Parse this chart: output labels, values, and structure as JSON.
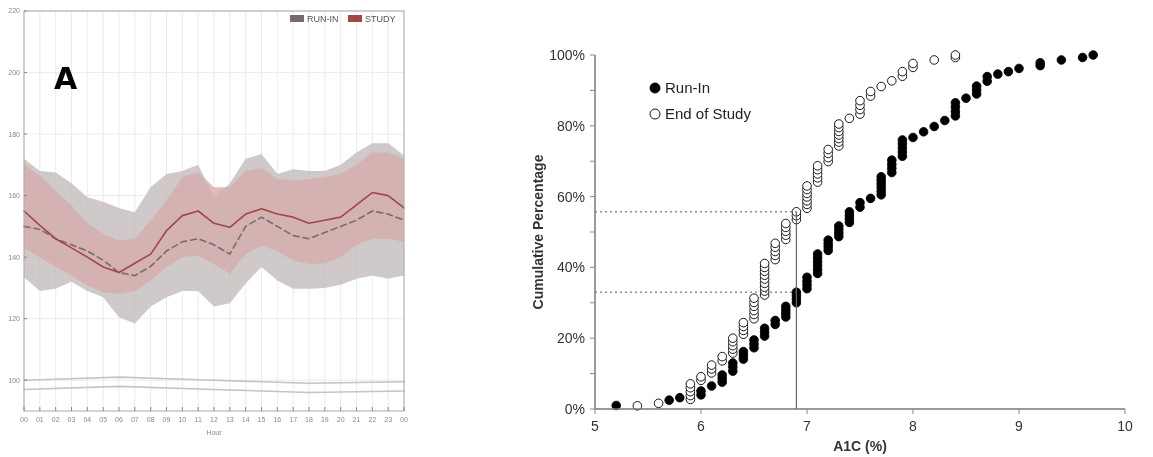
{
  "chart_data": [
    {
      "type": "line",
      "xlabel": "Hour",
      "annotations": [
        "A"
      ],
      "x": [
        0,
        1,
        2,
        3,
        4,
        5,
        6,
        7,
        8,
        9,
        10,
        11,
        12,
        13,
        14,
        15,
        16,
        17,
        18,
        19,
        20,
        21,
        22,
        23,
        24
      ],
      "xlim": [
        0,
        24
      ],
      "xticks": [
        {
          "value": 0,
          "label": "00"
        },
        {
          "value": 1,
          "label": "01"
        },
        {
          "value": 2,
          "label": "02"
        },
        {
          "value": 3,
          "label": "03"
        },
        {
          "value": 4,
          "label": "04"
        },
        {
          "value": 5,
          "label": "05"
        },
        {
          "value": 6,
          "label": "06"
        },
        {
          "value": 7,
          "label": "07"
        },
        {
          "value": 8,
          "label": "08"
        },
        {
          "value": 9,
          "label": "09"
        },
        {
          "value": 10,
          "label": "10"
        },
        {
          "value": 11,
          "label": "11"
        },
        {
          "value": 12,
          "label": "12"
        },
        {
          "value": 13,
          "label": "13"
        },
        {
          "value": 14,
          "label": "14"
        },
        {
          "value": 15,
          "label": "15"
        },
        {
          "value": 16,
          "label": "16"
        },
        {
          "value": 17,
          "label": "17"
        },
        {
          "value": 18,
          "label": "18"
        },
        {
          "value": 19,
          "label": "19"
        },
        {
          "value": 20,
          "label": "20"
        },
        {
          "value": 21,
          "label": "21"
        },
        {
          "value": 22,
          "label": "22"
        },
        {
          "value": 23,
          "label": "23"
        },
        {
          "value": 24,
          "label": "00"
        }
      ],
      "ylim": [
        90,
        220
      ],
      "yticks": [
        100,
        120,
        140,
        160,
        180,
        200,
        220
      ],
      "grid": true,
      "legend": "top right",
      "series": [
        {
          "name": "RUN-IN",
          "color": "#7a6a6a",
          "line_style": "dashed",
          "values": [
            150,
            149,
            146,
            144,
            142,
            139,
            135,
            134,
            137,
            142,
            145,
            146,
            144,
            141,
            150,
            153,
            150,
            147,
            146,
            148,
            150,
            152,
            155,
            154,
            152
          ],
          "lower": [
            133.5,
            129,
            129.7,
            132,
            129,
            127,
            120.5,
            118.4,
            124,
            127,
            129,
            129,
            124,
            125,
            131.4,
            136.8,
            132.4,
            129.7,
            129.7,
            130,
            131,
            133,
            134,
            133,
            134
          ],
          "upper": [
            172,
            168,
            167.5,
            164,
            159.5,
            158,
            156,
            154.6,
            162.7,
            167,
            168,
            170,
            159.5,
            164,
            172,
            173.5,
            167,
            168.6,
            168,
            168,
            170,
            174,
            177,
            177,
            173
          ]
        },
        {
          "name": "STUDY",
          "color": "#a04848",
          "line_style": "solid",
          "values": [
            155,
            150.3,
            146,
            143,
            140,
            136.8,
            135,
            138,
            141,
            148.6,
            153.5,
            155,
            151,
            149.7,
            154,
            155.7,
            154,
            153,
            151,
            152,
            153,
            157,
            161,
            160,
            156
          ],
          "lower": [
            143,
            140,
            136.8,
            134,
            130.8,
            128.6,
            128,
            129,
            132.4,
            136.8,
            140,
            140.5,
            137.8,
            134.6,
            141,
            143.8,
            142,
            139,
            137.8,
            138,
            140,
            144,
            146,
            146,
            145
          ],
          "upper": [
            170,
            166.5,
            161.6,
            156.8,
            151,
            147.6,
            145.4,
            146,
            151.9,
            158.4,
            166,
            167.6,
            162.7,
            162.7,
            168,
            169,
            165.4,
            164.9,
            165.4,
            166,
            167,
            170,
            174,
            174,
            172
          ]
        },
        {
          "color": "#c4c4c4",
          "line_style": "solid",
          "x": [
            0,
            6,
            12,
            18,
            24
          ],
          "values": [
            100,
            101,
            100,
            99,
            99.5
          ]
        },
        {
          "color": "#c4c4c4",
          "line_style": "solid",
          "x": [
            0,
            6,
            12,
            18,
            24
          ],
          "values": [
            97,
            98,
            97,
            96,
            96.5
          ]
        }
      ]
    },
    {
      "type": "scatter",
      "xlabel": "A1C (%)",
      "ylabel": "Cumulative Percentage",
      "marker": "circle",
      "legend": "top left",
      "xlim": [
        5,
        10
      ],
      "xticks": [
        5,
        6,
        7,
        8,
        9,
        10
      ],
      "ylim": [
        0,
        100
      ],
      "yticks": [
        {
          "value": 0,
          "label": "0%"
        },
        {
          "value": 10,
          "label": null
        },
        {
          "value": 20,
          "label": "20%"
        },
        {
          "value": 30,
          "label": null
        },
        {
          "value": 40,
          "label": "40%"
        },
        {
          "value": 50,
          "label": null
        },
        {
          "value": 60,
          "label": "60%"
        },
        {
          "value": 70,
          "label": null
        },
        {
          "value": 80,
          "label": "80%"
        },
        {
          "value": 90,
          "label": null
        },
        {
          "value": 100,
          "label": "100%"
        }
      ],
      "ref_lines": [
        {
          "axis": "y",
          "value": 55.7,
          "line_style": "dotted",
          "color": "#555555"
        },
        {
          "axis": "y",
          "value": 33,
          "line_style": "dotted",
          "color": "#555555"
        },
        {
          "axis": "x",
          "value": 6.9,
          "line_style": "solid",
          "color": "#666666"
        }
      ],
      "series": [
        {
          "name": "Run-In",
          "color": "#000000",
          "x": [
            5.2,
            5.7,
            5.8,
            6.0,
            6.0,
            6.1,
            6.2,
            6.2,
            6.2,
            6.3,
            6.3,
            6.3,
            6.4,
            6.4,
            6.4,
            6.5,
            6.5,
            6.5,
            6.6,
            6.6,
            6.6,
            6.7,
            6.7,
            6.8,
            6.8,
            6.8,
            6.8,
            6.9,
            6.9,
            6.9,
            6.9,
            7.0,
            7.0,
            7.0,
            7.0,
            7.1,
            7.1,
            7.1,
            7.1,
            7.1,
            7.1,
            7.2,
            7.2,
            7.2,
            7.2,
            7.3,
            7.3,
            7.3,
            7.3,
            7.4,
            7.4,
            7.4,
            7.4,
            7.5,
            7.5,
            7.6,
            7.7,
            7.7,
            7.7,
            7.7,
            7.7,
            7.7,
            7.8,
            7.8,
            7.8,
            7.8,
            7.9,
            7.9,
            7.9,
            7.9,
            7.9,
            8.0,
            8.1,
            8.2,
            8.3,
            8.4,
            8.4,
            8.4,
            8.4,
            8.5,
            8.6,
            8.6,
            8.6,
            8.7,
            8.7,
            8.8,
            8.9,
            9.0,
            9.2,
            9.2,
            9.4,
            9.6,
            9.7
          ],
          "values": [
            1,
            2.5,
            3.2,
            4,
            5.1,
            6.5,
            7.6,
            8.6,
            9.6,
            10.7,
            11.9,
            13,
            14.1,
            15.2,
            16.2,
            17.3,
            18.4,
            19.5,
            20.6,
            21.7,
            22.8,
            23.9,
            25,
            26,
            27,
            28,
            29,
            30,
            31,
            32,
            33,
            34,
            35.1,
            36.1,
            37.2,
            38.3,
            39.4,
            40.5,
            41.6,
            42.7,
            43.8,
            44.8,
            45.8,
            46.7,
            47.7,
            48.7,
            49.7,
            50.7,
            51.7,
            52.7,
            53.7,
            54.7,
            55.7,
            57,
            58.3,
            59.5,
            60.5,
            61.5,
            62.6,
            63.6,
            64.6,
            65.6,
            66.8,
            68,
            69.1,
            70.3,
            71.4,
            72.6,
            73.7,
            74.9,
            76,
            76.7,
            78.3,
            79.8,
            81.5,
            82.8,
            84,
            85.3,
            86.5,
            87.8,
            89,
            90.1,
            91.2,
            92.6,
            93.9,
            94.6,
            95.3,
            96.2,
            97,
            97.8,
            98.6,
            99.3,
            100
          ]
        },
        {
          "name": "End of Study",
          "color": "#ffffff",
          "x": [
            5.4,
            5.6,
            5.9,
            5.9,
            5.9,
            5.9,
            5.9,
            6.0,
            6.0,
            6.1,
            6.1,
            6.1,
            6.2,
            6.2,
            6.3,
            6.3,
            6.3,
            6.3,
            6.3,
            6.4,
            6.4,
            6.4,
            6.4,
            6.5,
            6.5,
            6.5,
            6.5,
            6.5,
            6.5,
            6.6,
            6.6,
            6.6,
            6.6,
            6.6,
            6.6,
            6.6,
            6.6,
            6.6,
            6.7,
            6.7,
            6.7,
            6.7,
            6.7,
            6.8,
            6.8,
            6.8,
            6.8,
            6.8,
            6.9,
            6.9,
            6.9,
            7.0,
            7.0,
            7.0,
            7.0,
            7.0,
            7.0,
            7.0,
            7.1,
            7.1,
            7.1,
            7.1,
            7.1,
            7.2,
            7.2,
            7.2,
            7.2,
            7.3,
            7.3,
            7.3,
            7.3,
            7.3,
            7.3,
            7.3,
            7.4,
            7.5,
            7.5,
            7.5,
            7.5,
            7.6,
            7.6,
            7.7,
            7.8,
            7.9,
            7.9,
            8.0,
            8.0,
            8.2,
            8.4,
            8.4
          ],
          "values": [
            0.9,
            1.6,
            2.7,
            3.8,
            4.9,
            6,
            7.1,
            8.1,
            9.1,
            10.2,
            11.3,
            12.4,
            13.6,
            14.8,
            15.8,
            16.9,
            17.9,
            19,
            20,
            21.1,
            22.2,
            23.3,
            24.4,
            25.5,
            26.7,
            27.8,
            29,
            30.1,
            31.3,
            32.2,
            33.3,
            34.4,
            35.5,
            36.7,
            37.8,
            38.9,
            40,
            41.1,
            42.2,
            43.4,
            44.5,
            45.7,
            46.8,
            47.9,
            49.1,
            50.2,
            51.3,
            52.4,
            53.5,
            54.6,
            55.7,
            56.7,
            57.8,
            58.8,
            59.9,
            60.9,
            62,
            63,
            64.1,
            65.3,
            66.4,
            67.6,
            68.7,
            69.9,
            71,
            72.2,
            73.3,
            74.3,
            75.4,
            76.4,
            77.4,
            78.4,
            79.5,
            80.5,
            82.1,
            83.3,
            84.6,
            85.8,
            87.1,
            88.4,
            89.7,
            91.1,
            92.7,
            94,
            95.3,
            96.5,
            97.6,
            98.6,
            99.3,
            100
          ]
        }
      ]
    }
  ]
}
